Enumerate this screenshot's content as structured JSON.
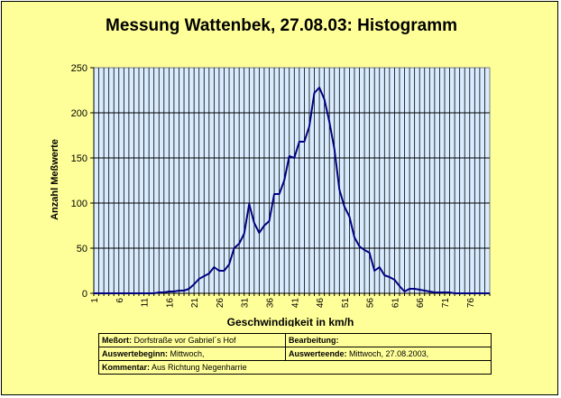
{
  "chart_data": {
    "type": "line",
    "title": "Messung Wattenbek, 27.08.03: Histogramm",
    "xlabel": "Geschwindigkeit in km/h",
    "ylabel": "Anzahl Meßwerte",
    "xlim": [
      1,
      80
    ],
    "ylim": [
      0,
      250
    ],
    "x_ticks": [
      "1",
      "6",
      "11",
      "16",
      "21",
      "26",
      "31",
      "36",
      "41",
      "46",
      "51",
      "56",
      "61",
      "66",
      "71",
      "76"
    ],
    "y_ticks": [
      "0",
      "50",
      "100",
      "150",
      "200",
      "250"
    ],
    "grid": true,
    "series": [
      {
        "values": [
          0,
          0,
          0,
          0,
          0,
          0,
          0,
          0,
          0,
          0,
          0,
          0,
          0,
          1,
          1,
          2,
          2,
          3,
          3,
          5,
          10,
          16,
          19,
          22,
          29,
          25,
          25,
          32,
          50,
          55,
          66,
          99,
          78,
          67,
          75,
          80,
          110,
          110,
          125,
          152,
          150,
          168,
          168,
          185,
          222,
          228,
          215,
          190,
          160,
          115,
          96,
          85,
          62,
          52,
          48,
          45,
          25,
          29,
          20,
          18,
          15,
          8,
          2,
          5,
          5,
          4,
          3,
          2,
          1,
          1,
          1,
          1,
          0,
          0,
          0,
          0,
          0,
          0,
          0,
          0
        ]
      }
    ],
    "colors": {
      "line": "#000080",
      "plot_background": "#d9ecff",
      "frame_background": "#ffff99"
    }
  },
  "info": {
    "messort_label": "Meßort:",
    "messort_value": "Dorfstraße vor Gabriel´s Hof",
    "bearbeitung_label": "Bearbeitung:",
    "bearbeitung_value": "",
    "beginn_label": "Auswertebeginn:",
    "beginn_value": "Mittwoch,",
    "ende_label": "Auswerteende:",
    "ende_value": "Mittwoch, 27.08.2003,",
    "kommentar_label": "Kommentar:",
    "kommentar_value": "Aus Richtung Negenharrie"
  }
}
